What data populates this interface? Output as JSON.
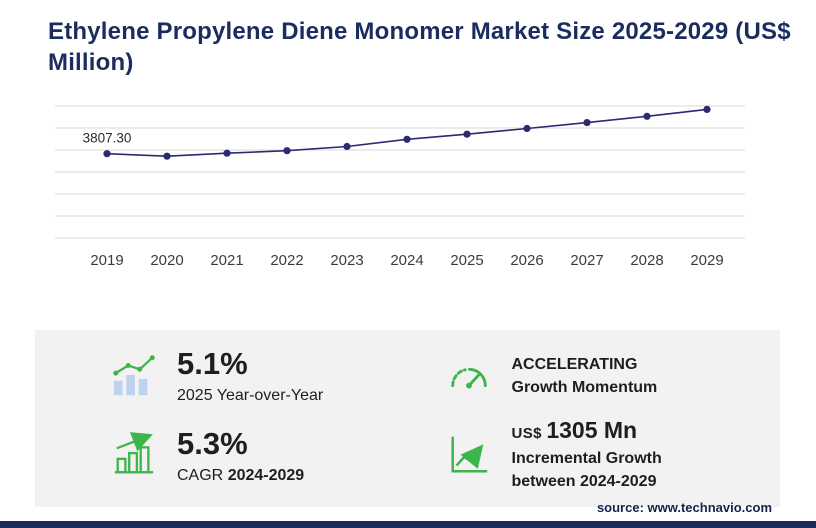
{
  "title": "Ethylene Propylene Diene Monomer Market Size 2025-2029 (US$ Million)",
  "chart_data": {
    "type": "line",
    "title": "Ethylene Propylene Diene Monomer Market Size 2025-2029 (US$ Million)",
    "unit": "US$ Million",
    "x": [
      "2019",
      "2020",
      "2021",
      "2022",
      "2023",
      "2024",
      "2025",
      "2026",
      "2027",
      "2028",
      "2029"
    ],
    "values": [
      3807.3,
      3700,
      3830,
      3940,
      4120,
      4433,
      4659,
      4905,
      5165,
      5440,
      5738
    ],
    "point_label": "3807.30",
    "xlabel": "",
    "ylabel": "",
    "ylim": [
      0,
      5800
    ],
    "grid": true,
    "gridlines": 7,
    "legend": "none",
    "line_color": "#2b2a72"
  },
  "stats": {
    "yoy": {
      "value": "5.1%",
      "label": "2025 Year-over-Year",
      "icon": "bar-chart-trend-icon"
    },
    "momentum": {
      "line1": "ACCELERATING",
      "line2": "Growth Momentum",
      "icon": "speedometer-icon"
    },
    "cagr": {
      "value": "5.3%",
      "label_prefix": "CAGR",
      "label_range": "2024-2029",
      "icon": "growth-bars-arrow-icon"
    },
    "incremental": {
      "currency": "US$",
      "value": "1305 Mn",
      "line1": "Incremental Growth",
      "line2": "between 2024-2029",
      "icon": "chart-up-arrow-icon"
    }
  },
  "source": "source: www.technavio.com",
  "colors": {
    "accent_green": "#3cb54a",
    "navy": "#1b2d5e",
    "line": "#2b2a72",
    "panel_gray": "#f2f2f2",
    "bar_blue": "#bcd2ee"
  }
}
